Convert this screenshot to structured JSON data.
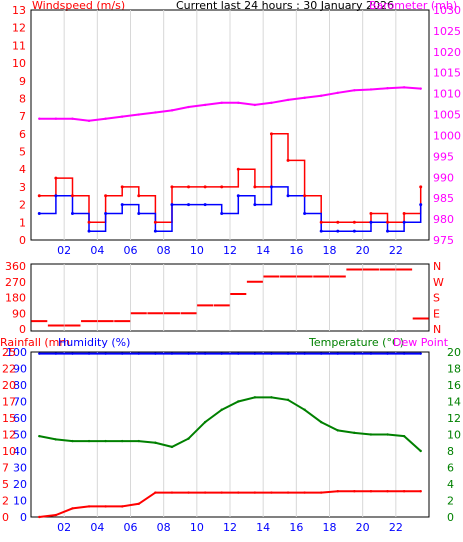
{
  "colors": {
    "wind_avg": "#0000ff",
    "wind_gust": "#ff0000",
    "baro": "#ff00ff",
    "winddir": "#ff0000",
    "rain": "#ff0000",
    "humidity": "#0000ff",
    "temperature": "#008000",
    "dewpoint": "#ff00ff",
    "axis_text_dark": "#0000ff"
  },
  "header": {
    "windspeed_label": "Windspeed (m/s)",
    "title": "Current last 24 hours : 30 January 2026",
    "barometer_label": "Barometer (mb)"
  },
  "panel_bottom_header": {
    "rainfall_label": "Rainfall (mm",
    "humidity_label": "Humidity (%)",
    "temperature_label": "Temperature (°C)",
    "dewpoint_label": "Dew Point"
  },
  "chart_data": [
    {
      "type": "line",
      "x_hours": [
        0,
        1,
        2,
        3,
        4,
        5,
        6,
        7,
        8,
        9,
        10,
        11,
        12,
        13,
        14,
        15,
        16,
        17,
        18,
        19,
        20,
        21,
        22,
        23
      ],
      "xticks": [
        "02",
        "04",
        "06",
        "08",
        "10",
        "12",
        "14",
        "16",
        "18",
        "20",
        "22"
      ],
      "xtick_hours": [
        2,
        4,
        6,
        8,
        10,
        12,
        14,
        16,
        18,
        20,
        22
      ],
      "left_axis": {
        "label": "Windspeed (m/s)",
        "ylim": [
          0,
          13
        ],
        "ticks": [
          0,
          1,
          2,
          3,
          4,
          5,
          6,
          7,
          8,
          9,
          10,
          11,
          12,
          13
        ]
      },
      "right_axis": {
        "label": "Barometer (mb)",
        "ylim": [
          975,
          1030
        ],
        "ticks": [
          975,
          980,
          985,
          990,
          995,
          1000,
          1005,
          1010,
          1015,
          1020,
          1025,
          1030
        ]
      },
      "series": [
        {
          "name": "Windspeed (m/s)",
          "axis": "left",
          "values": [
            1.5,
            2.5,
            1.5,
            0.5,
            1.5,
            2,
            1.5,
            0.5,
            2,
            2,
            2,
            1.5,
            2.5,
            2,
            3,
            2.5,
            1.5,
            0.5,
            0.5,
            0.5,
            1,
            0.5,
            1,
            2
          ]
        },
        {
          "name": "Gust (m/s)",
          "axis": "left",
          "values": [
            2.5,
            3.5,
            2.5,
            1,
            2.5,
            3,
            2.5,
            1,
            3,
            3,
            3,
            3,
            4,
            3,
            6,
            4.5,
            2.5,
            1,
            1,
            1,
            1.5,
            1,
            1.5,
            3
          ]
        },
        {
          "name": "Barometer (mb)",
          "axis": "right",
          "values": [
            1004,
            1004,
            1004,
            1003.5,
            1004,
            1004.5,
            1005,
            1005.5,
            1006,
            1006.8,
            1007.3,
            1007.8,
            1007.8,
            1007.3,
            1007.8,
            1008.5,
            1009,
            1009.5,
            1010.2,
            1010.8,
            1011,
            1011.3,
            1011.5,
            1011.2
          ]
        }
      ]
    },
    {
      "type": "scatter",
      "x_hours": [
        0,
        1,
        2,
        3,
        4,
        5,
        6,
        7,
        8,
        9,
        10,
        11,
        12,
        13,
        14,
        15,
        16,
        17,
        18,
        19,
        20,
        21,
        22,
        23
      ],
      "left_axis": {
        "ylim": [
          0,
          360
        ],
        "ticks": [
          0,
          90,
          180,
          270,
          360
        ]
      },
      "right_axis_labels": [
        "N",
        "W",
        "S",
        "E",
        "N"
      ],
      "series": [
        {
          "name": "Wind direction",
          "values": [
            45,
            20,
            20,
            45,
            45,
            45,
            90,
            90,
            90,
            90,
            135,
            135,
            200,
            270,
            300,
            300,
            300,
            300,
            300,
            340,
            340,
            340,
            340,
            60
          ]
        }
      ]
    },
    {
      "type": "line",
      "x_hours": [
        0,
        1,
        2,
        3,
        4,
        5,
        6,
        7,
        8,
        9,
        10,
        11,
        12,
        13,
        14,
        15,
        16,
        17,
        18,
        19,
        20,
        21,
        22,
        23
      ],
      "xticks": [
        "02",
        "04",
        "06",
        "08",
        "10",
        "12",
        "14",
        "16",
        "18",
        "20",
        "22"
      ],
      "xtick_hours": [
        2,
        4,
        6,
        8,
        10,
        12,
        14,
        16,
        18,
        20,
        22
      ],
      "left_axis_humidity": {
        "ylim": [
          0,
          100
        ],
        "ticks": [
          0,
          10,
          20,
          30,
          40,
          50,
          60,
          70,
          80,
          90,
          100
        ]
      },
      "left_axis_rain": {
        "ylim": [
          0,
          25
        ],
        "ticks": [
          0,
          2,
          5,
          7,
          10,
          12,
          15,
          17,
          20,
          22,
          25
        ]
      },
      "right_axis_temp": {
        "ylim": [
          0,
          20
        ],
        "ticks": [
          0,
          2,
          4,
          6,
          8,
          10,
          12,
          14,
          16,
          18,
          20
        ]
      },
      "series": [
        {
          "name": "Humidity (%)",
          "axis": "humidity",
          "values": [
            99,
            99,
            99,
            99,
            99,
            99,
            99,
            99,
            99,
            99,
            99,
            99,
            99,
            99,
            99,
            99,
            99,
            99,
            99,
            99,
            99,
            99,
            99,
            99
          ]
        },
        {
          "name": "Temperature (°C)",
          "axis": "temp",
          "values": [
            9.8,
            9.4,
            9.2,
            9.2,
            9.2,
            9.2,
            9.2,
            9.0,
            8.5,
            9.5,
            11.5,
            13.0,
            14.0,
            14.5,
            14.5,
            14.2,
            13.0,
            11.5,
            10.5,
            10.2,
            10.0,
            10.0,
            9.8,
            8.0
          ]
        },
        {
          "name": "Rainfall (mm)",
          "axis": "rain",
          "values": [
            0,
            0.3,
            1.3,
            1.6,
            1.6,
            1.6,
            2.0,
            3.7,
            3.7,
            3.7,
            3.7,
            3.7,
            3.7,
            3.7,
            3.7,
            3.7,
            3.7,
            3.7,
            3.9,
            3.9,
            3.9,
            3.9,
            3.9,
            3.9
          ]
        }
      ]
    }
  ]
}
